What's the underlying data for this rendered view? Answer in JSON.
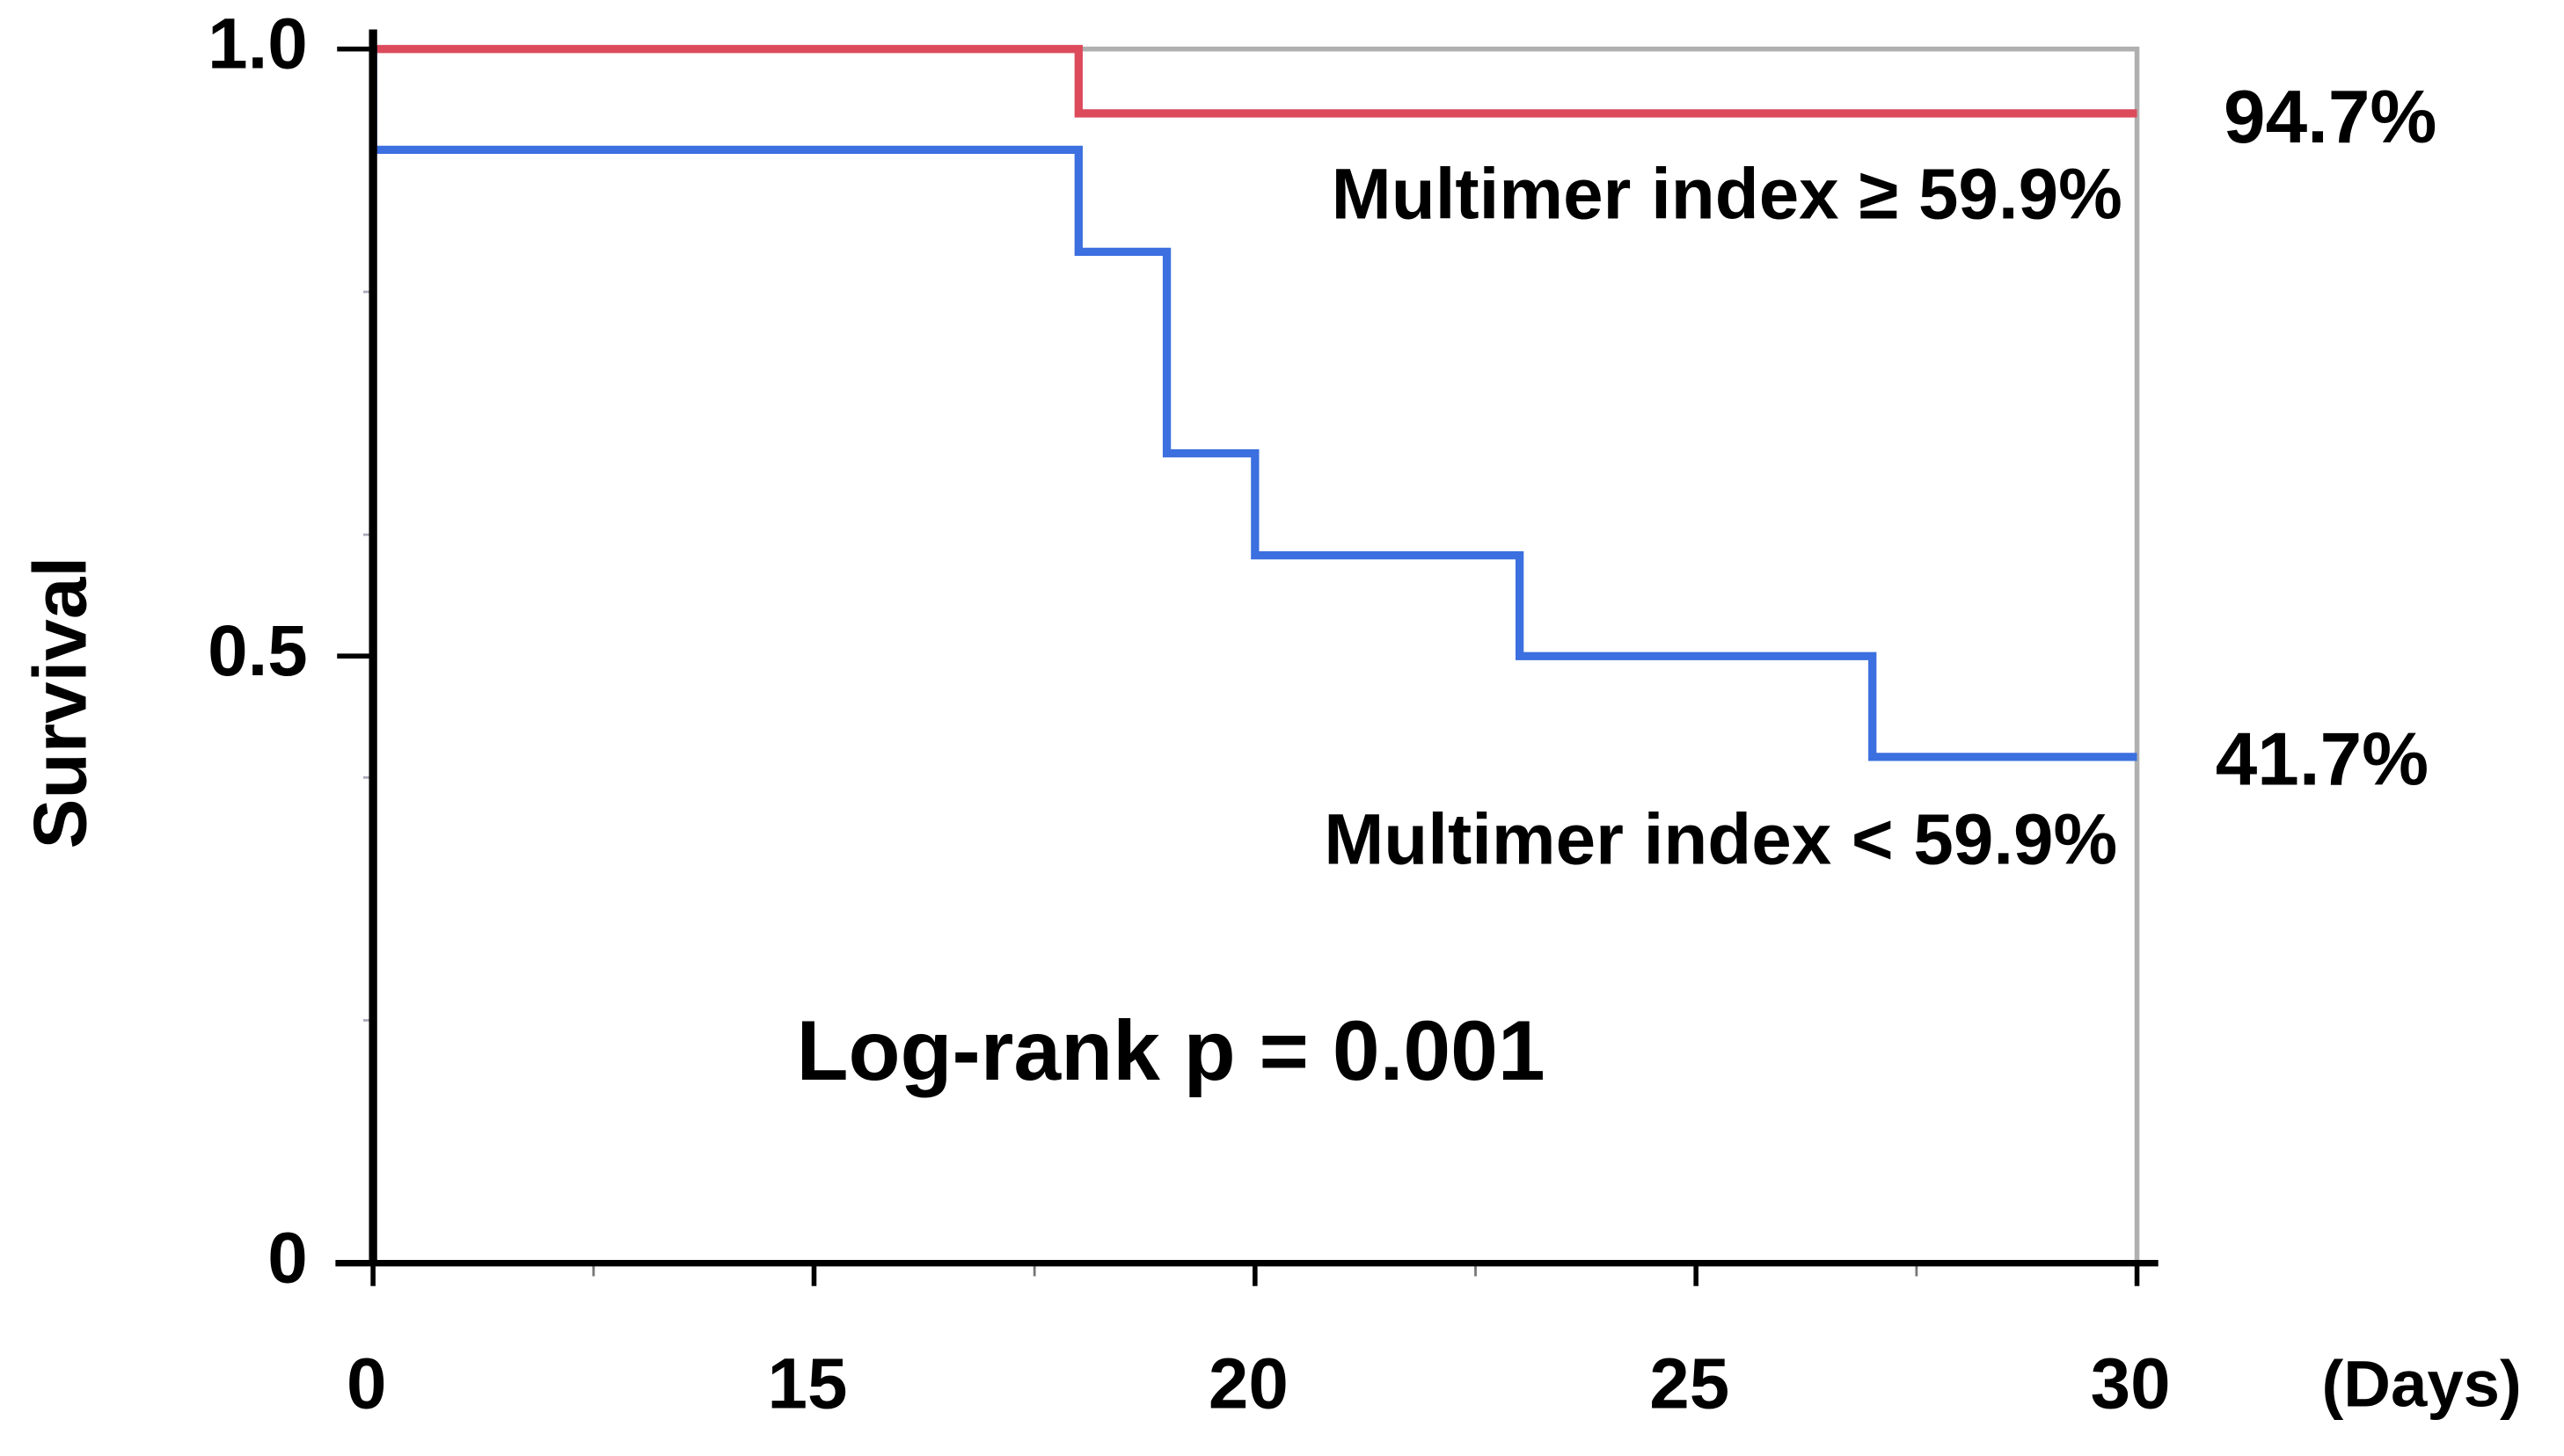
{
  "chart_data": {
    "type": "step",
    "y_label": "Survival",
    "x_unit": "(Days)",
    "annotation": "Log-rank p = 0.001",
    "xlim": [
      0,
      30
    ],
    "xticks": [
      0,
      15,
      20,
      25,
      30
    ],
    "xminor": [
      7.5,
      17.5,
      22.5,
      27.5
    ],
    "ylim": [
      0,
      1
    ],
    "yticks": [
      0,
      0.5,
      {
        "value": 1,
        "label": "1.0"
      }
    ],
    "yminor": [
      0.2,
      0.4,
      0.6,
      0.8
    ],
    "series": [
      {
        "name": "Multimer index ≥ 59.9%",
        "color": "#dc4a5c",
        "x": [
          0,
          18,
          30
        ],
        "values": [
          1,
          0.947,
          0.947
        ],
        "end_label": "94.7%"
      },
      {
        "name": "Multimer index < 59.9%",
        "color": "#3c6fdf",
        "x": [
          0,
          0,
          18,
          19,
          20,
          23,
          27,
          30
        ],
        "values": [
          1,
          0.917,
          0.833,
          0.667,
          0.583,
          0.5,
          0.417,
          0.417
        ],
        "end_label": "41.7%"
      }
    ]
  }
}
